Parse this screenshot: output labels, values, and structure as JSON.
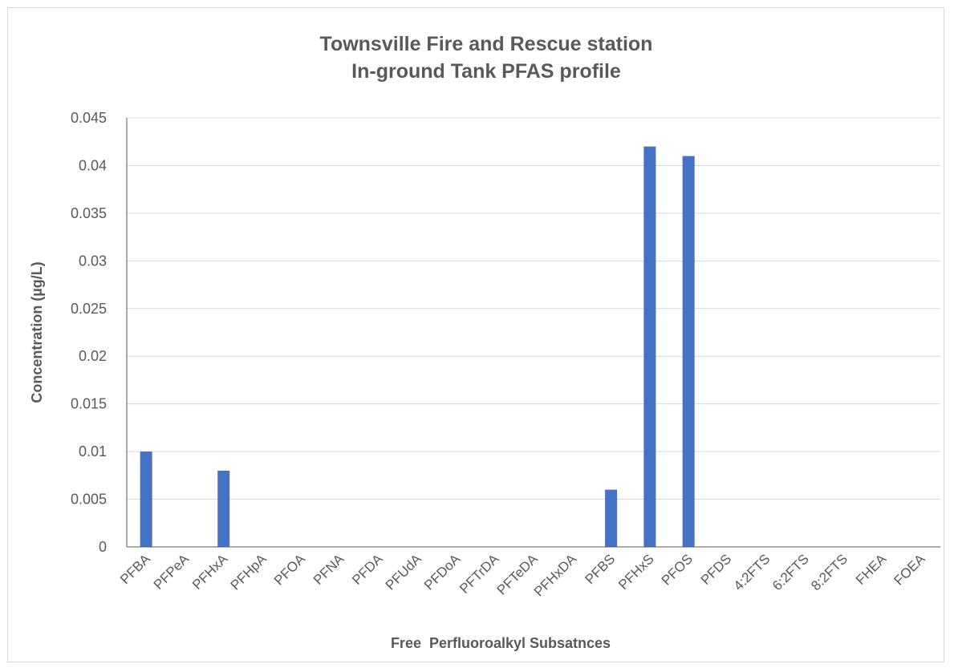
{
  "chart_data": {
    "type": "bar",
    "title": [
      "Townsville Fire and Rescue station",
      "In-ground Tank PFAS profile"
    ],
    "xlabel": "Free  Perfluoroalkyl Subsatnces",
    "ylabel": "Concentration (µg/L)",
    "ylim": [
      0,
      0.045
    ],
    "yticks": [
      "0",
      "0.005",
      "0.01",
      "0.015",
      "0.02",
      "0.025",
      "0.03",
      "0.035",
      "0.04",
      "0.045"
    ],
    "grid": true,
    "bar_color": "#4472C4",
    "categories": [
      "PFBA",
      "PFPeA",
      "PFHxA",
      "PFHpA",
      "PFOA",
      "PFNA",
      "PFDA",
      "PFUdA",
      "PFDoA",
      "PFTrDA",
      "PFTeDA",
      "PFHxDA",
      "PFBS",
      "PFHxS",
      "PFOS",
      "PFDS",
      "4:2FTS",
      "6:2FTS",
      "8:2FTS",
      "FHEA",
      "FOEA"
    ],
    "values": [
      0.01,
      0,
      0.008,
      0,
      0,
      0,
      0,
      0,
      0,
      0,
      0,
      0,
      0.006,
      0.042,
      0.041,
      0,
      0,
      0,
      0,
      0,
      0
    ]
  }
}
